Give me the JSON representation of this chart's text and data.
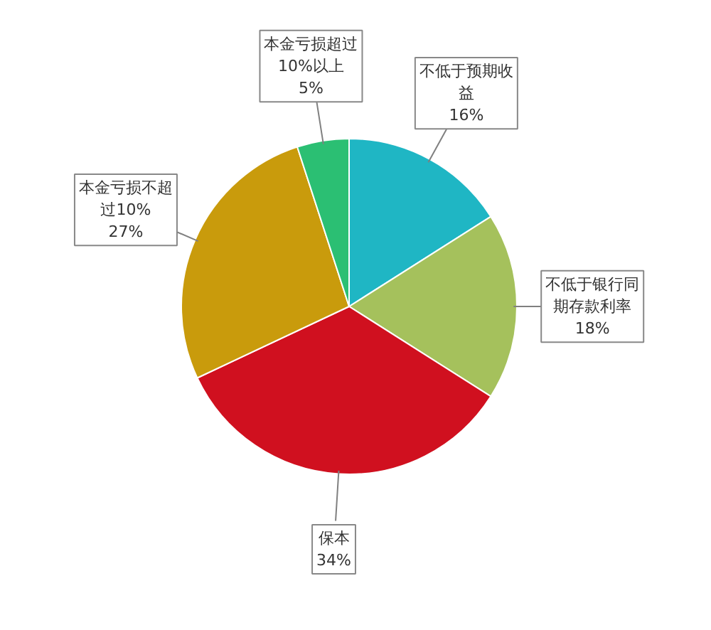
{
  "chart_data": {
    "type": "pie",
    "categories": [
      "不低于预期收益",
      "不低于银行同期存款利率",
      "保本",
      "本金亏损不超过10%",
      "本金亏损超过10%以上"
    ],
    "values": [
      16,
      18,
      34,
      27,
      5
    ],
    "value_labels": [
      "16%",
      "18%",
      "34%",
      "27%",
      "5%"
    ],
    "colors": [
      "#1fb6c4",
      "#a5c15c",
      "#d0101f",
      "#c99b0c",
      "#2bbf73"
    ]
  }
}
